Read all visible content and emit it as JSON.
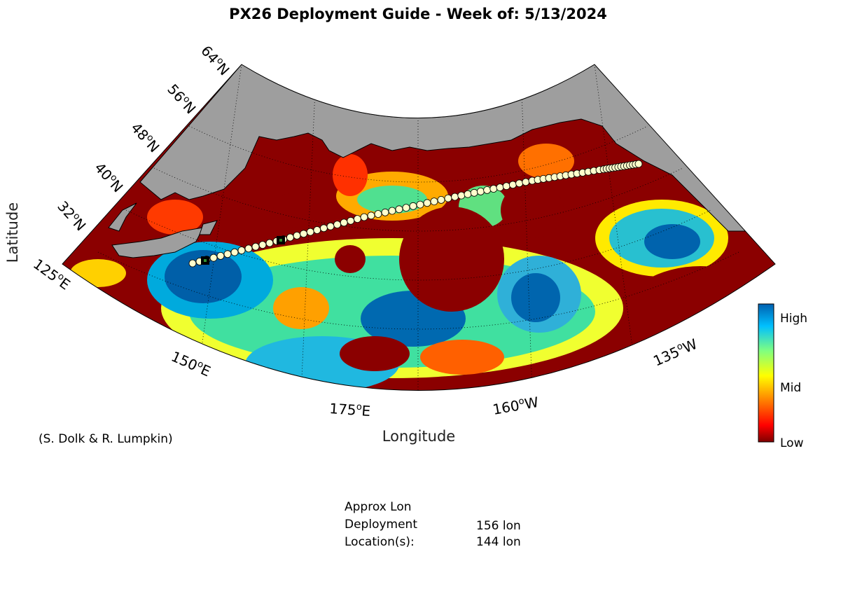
{
  "title": "PX26 Deployment Guide - Week of: 5/13/2024",
  "axes": {
    "xlabel": "Longitude",
    "ylabel": "Latitude",
    "lat_ticks": [
      "64oN",
      "56oN",
      "48oN",
      "40oN",
      "32oN"
    ],
    "lon_ticks": [
      "125oE",
      "150oE",
      "175oE",
      "160oW",
      "135oW"
    ]
  },
  "colorbar": {
    "labels": [
      "High",
      "Mid",
      "Low"
    ],
    "colors": [
      "#7f0000",
      "#ff0000",
      "#ff8000",
      "#ffff00",
      "#80ff80",
      "#00c0ff",
      "#0060b0"
    ]
  },
  "colors": {
    "land": "#9e9e9e",
    "low": "#8b0000",
    "track_marker": "#ffffcc",
    "deployment_marker": "#000000"
  },
  "credit": "(S. Dolk & R. Lumpkin)",
  "info": {
    "approx_label": "Approx Lon",
    "deployment_label": "Deployment",
    "locations_label": "Location(s):",
    "values": [
      "156 lon",
      "144 lon"
    ]
  },
  "chart_data": {
    "type": "heatmap",
    "title": "PX26 Deployment Guide - Week of: 5/13/2024",
    "xlabel": "Longitude",
    "ylabel": "Latitude",
    "lat_range": [
      32,
      64
    ],
    "lon_range": [
      "125oE",
      "135oW"
    ],
    "deployment_lon": [
      156,
      144
    ],
    "scale": [
      "Low",
      "Mid",
      "High"
    ]
  }
}
